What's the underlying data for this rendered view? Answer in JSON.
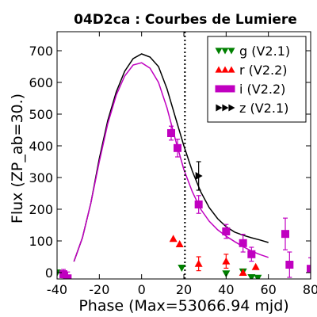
{
  "chart_data": {
    "type": "scatter",
    "title": "04D2ca : Courbes de Lumiere",
    "xlabel": "Phase (Max=53066.94 mjd)",
    "ylabel": "Flux (ZP_ab=30.)",
    "xlim": [
      -40,
      80
    ],
    "ylim": [
      -20,
      760
    ],
    "xticks": [
      "-40",
      "-20",
      "0",
      "20",
      "40",
      "60",
      "80"
    ],
    "yticks": [
      "0",
      "100",
      "200",
      "300",
      "400",
      "500",
      "600",
      "700"
    ],
    "grid": false,
    "legend_position": "top-right",
    "vline": {
      "x": 20.5,
      "style": "dotted"
    },
    "models": [
      {
        "color": "#000000",
        "points": [
          [
            -32,
            35
          ],
          [
            -28,
            110
          ],
          [
            -24,
            220
          ],
          [
            -20,
            360
          ],
          [
            -16,
            480
          ],
          [
            -12,
            570
          ],
          [
            -8,
            635
          ],
          [
            -4,
            675
          ],
          [
            0,
            690
          ],
          [
            4,
            680
          ],
          [
            8,
            650
          ],
          [
            12,
            580
          ],
          [
            16,
            490
          ],
          [
            20,
            400
          ],
          [
            24,
            320
          ],
          [
            28,
            255
          ],
          [
            32,
            205
          ],
          [
            36,
            170
          ],
          [
            40,
            145
          ],
          [
            44,
            128
          ],
          [
            48,
            118
          ],
          [
            52,
            110
          ],
          [
            56,
            103
          ],
          [
            60,
            95
          ]
        ]
      },
      {
        "color": "#c000c0",
        "points": [
          [
            -32,
            35
          ],
          [
            -28,
            110
          ],
          [
            -24,
            220
          ],
          [
            -20,
            350
          ],
          [
            -16,
            470
          ],
          [
            -12,
            560
          ],
          [
            -8,
            620
          ],
          [
            -4,
            655
          ],
          [
            0,
            662
          ],
          [
            4,
            645
          ],
          [
            8,
            600
          ],
          [
            12,
            520
          ],
          [
            16,
            420
          ],
          [
            20,
            325
          ],
          [
            24,
            255
          ],
          [
            28,
            200
          ],
          [
            32,
            162
          ],
          [
            36,
            135
          ],
          [
            40,
            115
          ],
          [
            44,
            98
          ],
          [
            48,
            82
          ],
          [
            52,
            68
          ],
          [
            56,
            57
          ],
          [
            60,
            48
          ]
        ]
      }
    ],
    "series": [
      {
        "name": "g (V2.1)",
        "color": "#008000",
        "marker": "triangle-down",
        "points": [
          {
            "x": -40,
            "y": 0,
            "err": 0
          },
          {
            "x": 19,
            "y": 15,
            "err": 0
          },
          {
            "x": 40,
            "y": -3,
            "err": 0
          },
          {
            "x": 48,
            "y": 3,
            "err": 0
          },
          {
            "x": 52,
            "y": -15,
            "err": 0
          },
          {
            "x": 55,
            "y": -17,
            "err": 0
          },
          {
            "x": 70,
            "y": 22,
            "err": 0
          }
        ]
      },
      {
        "name": "r (V2.2)",
        "color": "#ff0000",
        "marker": "triangle-up",
        "points": [
          {
            "x": 15,
            "y": 107,
            "err": 0
          },
          {
            "x": 18,
            "y": 90,
            "err": 0
          },
          {
            "x": 27,
            "y": 28,
            "err": 22
          },
          {
            "x": 40,
            "y": 36,
            "err": 22
          },
          {
            "x": 48,
            "y": 0,
            "err": 0
          },
          {
            "x": 54,
            "y": 18,
            "err": 0
          }
        ]
      },
      {
        "name": "i (V2.2)",
        "color": "#c000c0",
        "marker": "square",
        "points": [
          {
            "x": -37,
            "y": -5,
            "err": 15
          },
          {
            "x": -35,
            "y": -18,
            "err": 20
          },
          {
            "x": 14,
            "y": 440,
            "err": 22
          },
          {
            "x": 17,
            "y": 393,
            "err": 28
          },
          {
            "x": 27,
            "y": 215,
            "err": 28
          },
          {
            "x": 40,
            "y": 130,
            "err": 22
          },
          {
            "x": 48,
            "y": 93,
            "err": 28
          },
          {
            "x": 52,
            "y": 58,
            "err": 22
          },
          {
            "x": 68,
            "y": 122,
            "err": 50
          },
          {
            "x": 70,
            "y": 25,
            "err": 40
          },
          {
            "x": 80,
            "y": 12,
            "err": 35
          }
        ]
      },
      {
        "name": "z (V2.1)",
        "color": "#000000",
        "marker": "triangle-right",
        "points": [
          {
            "x": 27,
            "y": 305,
            "err": 45
          }
        ]
      }
    ]
  }
}
